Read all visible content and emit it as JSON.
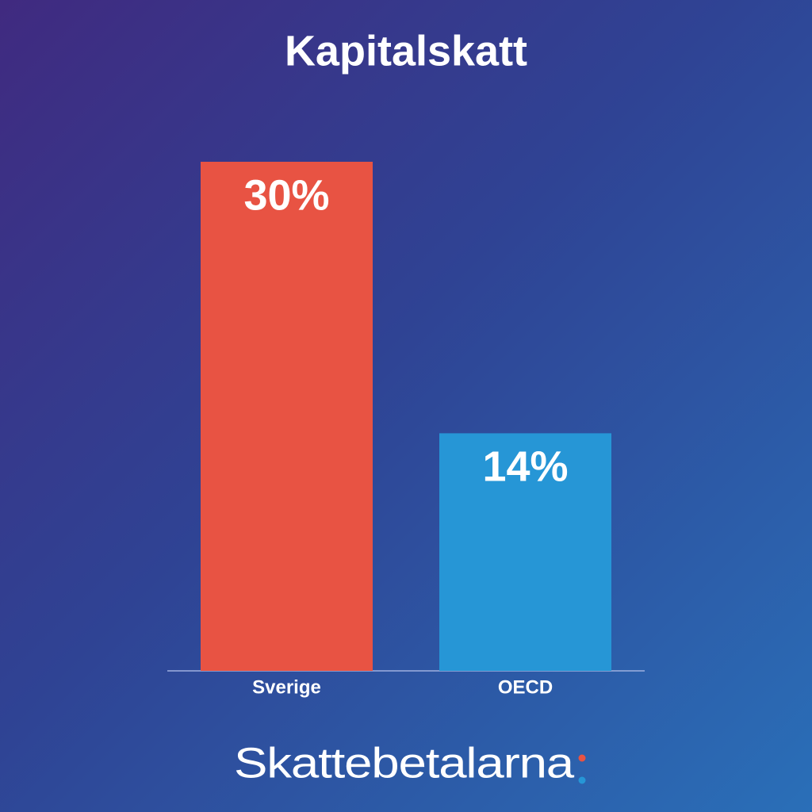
{
  "chart_data": {
    "type": "bar",
    "title": "Kapitalskatt",
    "categories": [
      "Sverige",
      "OECD"
    ],
    "values": [
      30,
      14
    ],
    "value_labels": [
      "30%",
      "14%"
    ],
    "colors": [
      "#e85343",
      "#2696d6"
    ]
  },
  "footer": {
    "logo": "Skattebetalarna"
  }
}
